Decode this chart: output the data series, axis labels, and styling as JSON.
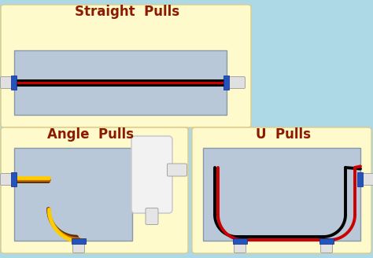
{
  "bg_color": "#add8e6",
  "straight_pulls": {
    "label": "Straight  Pulls",
    "label_color": "#8b1a00",
    "box_bg": "#fffacc",
    "inner_bg": "#b8c8d8",
    "wire_colors": [
      "#000000",
      "#cc0000",
      "#000000"
    ],
    "wire_offsets": [
      -3,
      0,
      3
    ]
  },
  "angle_pulls": {
    "label": "Angle  Pulls",
    "label_color": "#8b1a00",
    "box_bg": "#fffacc",
    "inner_bg": "#b8c8d8",
    "wire_colors": [
      "#5a3000",
      "#cc6600",
      "#ffcc00"
    ],
    "wire_offsets": [
      -5,
      0,
      5
    ]
  },
  "u_pulls": {
    "label": "U  Pulls",
    "label_color": "#8b1a00",
    "box_bg": "#fffacc",
    "inner_bg": "#b8c8d8",
    "wire_colors": [
      "#000000",
      "#cc0000"
    ],
    "wire_offsets": [
      -4,
      4
    ]
  },
  "fitting_color": "#e0e0e0",
  "connector_color": "#2255bb",
  "font_family": "DejaVu Sans"
}
